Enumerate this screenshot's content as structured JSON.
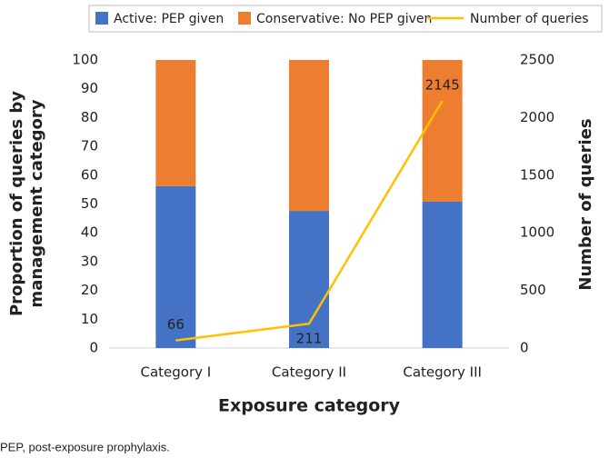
{
  "chart_data": {
    "type": "bar",
    "stacked": true,
    "categories": [
      "Category I",
      "Category II",
      "Category III"
    ],
    "series": [
      {
        "name": "Active: PEP given",
        "color": "#4472c4",
        "values": [
          56.2,
          47.6,
          50.8
        ]
      },
      {
        "name": "Conservative: No PEP given",
        "color": "#ed7d31",
        "values": [
          43.8,
          52.4,
          49.2
        ]
      },
      {
        "name": "Number of queries",
        "color": "#ffc000",
        "type": "line",
        "axis": "y2",
        "values": [
          66,
          211,
          2145
        ]
      }
    ],
    "ylim": [
      0,
      100
    ],
    "yticks": [
      0,
      10,
      20,
      30,
      40,
      50,
      60,
      70,
      80,
      90,
      100
    ],
    "y2lim": [
      0,
      2500
    ],
    "y2ticks": [
      0,
      500,
      1000,
      1500,
      2000,
      2500
    ],
    "ylabel": "Proportion of queries by management category",
    "y2label": "Number of queries",
    "xlabel": "Exposure category",
    "legend": "top"
  },
  "footnote": "PEP, post-exposure prophylaxis."
}
